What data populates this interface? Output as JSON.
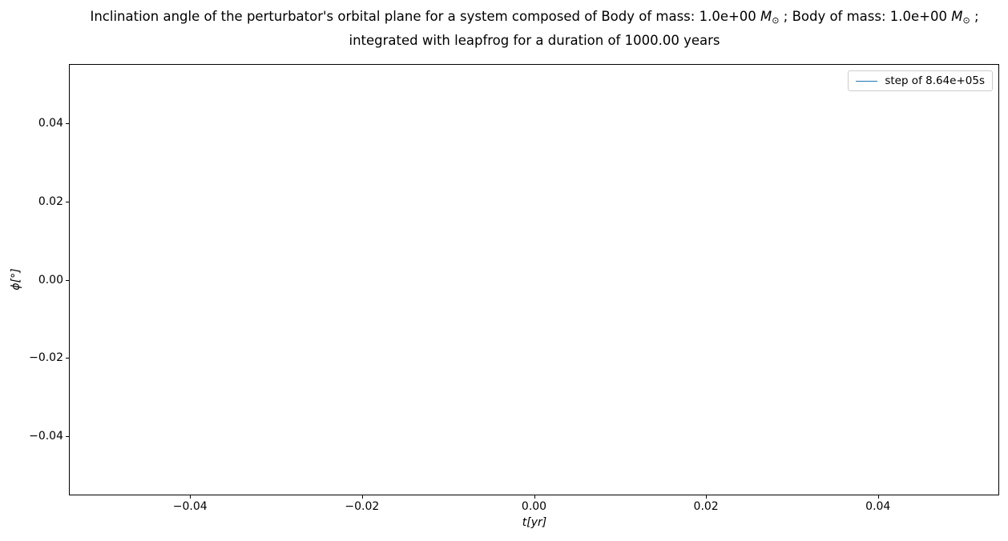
{
  "figure": {
    "background": "#ffffff",
    "title_line1": {
      "text1": "Inclination angle of the perturbator's orbital plane for a system composed of Body of mass: 1.0e+00 ",
      "mass1_symbol": "M",
      "mass1_sub": "⊙",
      "text2": " ; Body of mass: 1.0e+00 ",
      "mass2_symbol": "M",
      "mass2_sub": "⊙",
      "text3": " ;"
    },
    "title_line2": "integrated with leapfrog for a duration of 1000.00 years"
  },
  "chart_data": {
    "type": "line",
    "title": "Inclination angle of the perturbator's orbital plane for a system composed of Body of mass: 1.0e+00 M⊙ ; Body of mass: 1.0e+00 M⊙ ; integrated with leapfrog for a duration of 1000.00 years",
    "xlabel": "t[yr]",
    "ylabel": "ϕ[°]",
    "xlim": [
      -0.054,
      0.054
    ],
    "ylim": [
      -0.055,
      0.055
    ],
    "x_ticks": [
      -0.04,
      -0.02,
      0.0,
      0.02,
      0.04
    ],
    "x_tick_labels": [
      "−0.04",
      "−0.02",
      "0.00",
      "0.02",
      "0.04"
    ],
    "y_ticks": [
      0.04,
      0.02,
      0.0,
      -0.02,
      -0.04
    ],
    "y_tick_labels": [
      "0.04",
      "0.02",
      "0.00",
      "−0.02",
      "−0.04"
    ],
    "grid": false,
    "axes_empty": true,
    "legend": {
      "position": "upper right",
      "entries": [
        {
          "label": "step of 8.64e+05s",
          "color": "#1f77b4",
          "marker": "line"
        }
      ]
    },
    "series": [
      {
        "name": "step of 8.64e+05s",
        "color": "#1f77b4",
        "x": [],
        "y": []
      }
    ]
  }
}
